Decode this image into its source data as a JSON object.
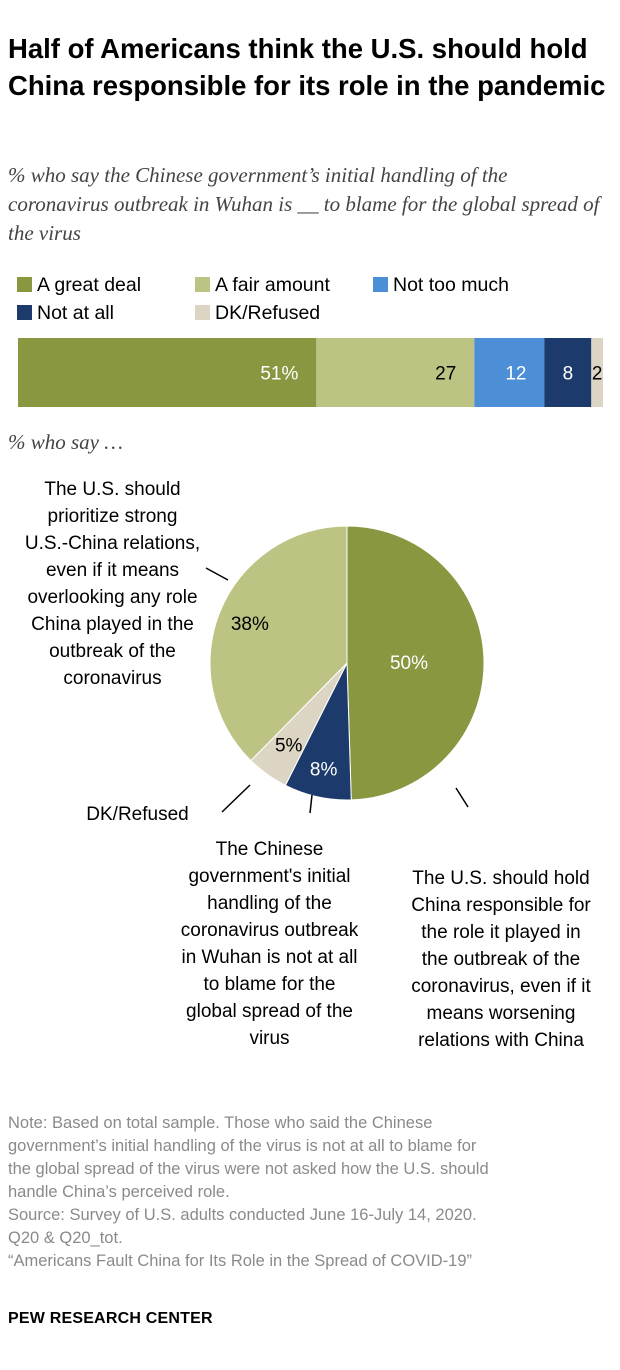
{
  "title": "Half of Americans think the U.S. should hold China responsible for its role in the pandemic",
  "subtitle": "% who say the Chinese government’s initial handling of the coronavirus outbreak in Wuhan is __ to blame for the global spread of the virus",
  "chart_data": [
    {
      "type": "bar",
      "orientation": "horizontal-stacked",
      "categories": [
        "A great deal",
        "A fair amount",
        "Not too much",
        "Not at all",
        "DK/Refused"
      ],
      "values": [
        51,
        27,
        12,
        8,
        2
      ],
      "value_labels": [
        "51%",
        "27",
        "12",
        "8",
        "2"
      ],
      "colors": [
        "#8a9741",
        "#bcc383",
        "#4d8fd6",
        "#1c3a6b",
        "#ddd5c4"
      ],
      "label_colors": [
        "#ffffff",
        "#000000",
        "#ffffff",
        "#ffffff",
        "#000000"
      ],
      "legend": [
        "A great deal",
        "A fair amount",
        "Not too much",
        "Not at all",
        "DK/Refused"
      ]
    },
    {
      "type": "pie",
      "title": "% who say …",
      "categories": [
        "The U.S. should hold China responsible for the role it played in the outbreak of the coronavirus, even if it means worsening relations with China",
        "The Chinese government's initial handling of the coronavirus outbreak in Wuhan is not at all to blame for the global spread of the virus",
        "DK/Refused",
        "The U.S. should prioritize strong U.S.-China relations, even if it means overlooking any role China played in the outbreak of the coronavirus"
      ],
      "values": [
        50,
        8,
        5,
        38
      ],
      "value_labels": [
        "50%",
        "8%",
        "5%",
        "38%"
      ],
      "colors": [
        "#8a9741",
        "#1c3a6b",
        "#ddd5c4",
        "#bcc383"
      ],
      "label_colors": [
        "#ffffff",
        "#ffffff",
        "#000000",
        "#000000"
      ]
    }
  ],
  "annotations": {
    "prioritize_lines": [
      "The U.S. should",
      "prioritize strong",
      "U.S.-China relations,",
      "even if it means",
      "overlooking any role",
      "China played in the",
      "outbreak of the",
      "coronavirus"
    ],
    "dk_label": "DK/Refused",
    "not_blame_lines": [
      "The Chinese",
      "government's initial",
      "handling of the",
      "coronavirus outbreak",
      "in Wuhan is not at all",
      "to blame for the",
      "global spread of the",
      "virus"
    ],
    "responsible_lines": [
      "The U.S. should hold",
      "China responsible for",
      "the role it played in",
      "the outbreak of the",
      "coronavirus, even if it",
      "means worsening",
      "relations with China"
    ]
  },
  "note_lines": [
    "Note: Based on total sample. Those who said the Chinese",
    "government’s initial handling of the virus is not at all to blame for",
    "the global spread of the virus were not asked how the U.S. should",
    "handle China’s perceived role.",
    "Source: Survey of U.S. adults conducted June 16-July 14, 2020.",
    "Q20 & Q20_tot.",
    "“Americans Fault China for Its Role in the Spread of COVID-19”"
  ],
  "footer": "PEW RESEARCH CENTER"
}
